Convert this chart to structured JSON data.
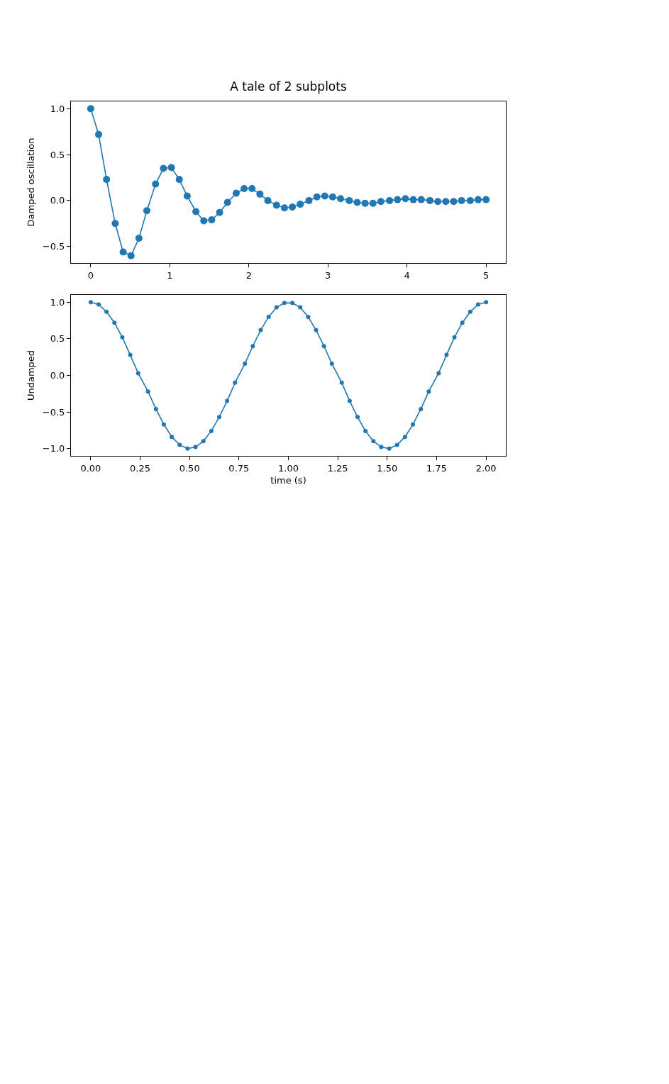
{
  "chart_data": [
    {
      "type": "line",
      "title": "A tale of 2 subplots",
      "ylabel": "Damped oscillation",
      "marker": "circle",
      "line_style": "solid",
      "grid": false,
      "legend": false,
      "x": [
        0,
        0.1,
        0.2,
        0.31,
        0.41,
        0.51,
        0.61,
        0.71,
        0.82,
        0.92,
        1.02,
        1.12,
        1.22,
        1.33,
        1.43,
        1.53,
        1.63,
        1.73,
        1.84,
        1.94,
        2.04,
        2.14,
        2.24,
        2.35,
        2.45,
        2.55,
        2.65,
        2.76,
        2.86,
        2.96,
        3.06,
        3.16,
        3.27,
        3.37,
        3.47,
        3.57,
        3.67,
        3.78,
        3.88,
        3.98,
        4.08,
        4.18,
        4.29,
        4.39,
        4.49,
        4.59,
        4.69,
        4.8,
        4.9,
        5.0
      ],
      "series": [
        {
          "color": "#1f77b4",
          "values": [
            1.0,
            0.72,
            0.23,
            -0.25,
            -0.56,
            -0.6,
            -0.41,
            -0.11,
            0.18,
            0.35,
            0.36,
            0.23,
            0.05,
            -0.12,
            -0.22,
            -0.21,
            -0.13,
            -0.02,
            0.08,
            0.13,
            0.13,
            0.07,
            0.0,
            -0.05,
            -0.08,
            -0.07,
            -0.04,
            0.0,
            0.04,
            0.05,
            0.04,
            0.02,
            0.0,
            -0.02,
            -0.03,
            -0.03,
            -0.01,
            0.0,
            0.01,
            0.02,
            0.01,
            0.01,
            0.0,
            -0.01,
            -0.01,
            -0.01,
            0.0,
            0.0,
            0.01,
            0.01
          ]
        }
      ],
      "xlim": [
        -0.25,
        5.25
      ],
      "xticks": [
        0,
        1,
        2,
        3,
        4,
        5
      ],
      "ylim": [
        -0.68,
        1.08
      ],
      "yticks": [
        {
          "value": -0.5,
          "label": "−0.5"
        },
        {
          "value": 0,
          "label": "0.0"
        },
        {
          "value": 0.5,
          "label": "0.5"
        },
        {
          "value": 1,
          "label": "1.0"
        }
      ]
    },
    {
      "type": "line",
      "xlabel": "time (s)",
      "ylabel": "Undamped",
      "marker": "circle",
      "line_style": "solid",
      "grid": false,
      "legend": false,
      "x": [
        0,
        0.04,
        0.08,
        0.12,
        0.16,
        0.2,
        0.24,
        0.29,
        0.33,
        0.37,
        0.41,
        0.45,
        0.49,
        0.53,
        0.57,
        0.61,
        0.65,
        0.69,
        0.73,
        0.78,
        0.82,
        0.86,
        0.9,
        0.94,
        0.98,
        1.02,
        1.06,
        1.1,
        1.14,
        1.18,
        1.22,
        1.27,
        1.31,
        1.35,
        1.39,
        1.43,
        1.47,
        1.51,
        1.55,
        1.59,
        1.63,
        1.67,
        1.71,
        1.76,
        1.8,
        1.84,
        1.88,
        1.92,
        1.96,
        2.0
      ],
      "series": [
        {
          "color": "#1f77b4",
          "values": [
            1.0,
            0.97,
            0.87,
            0.72,
            0.52,
            0.28,
            0.03,
            -0.22,
            -0.46,
            -0.67,
            -0.84,
            -0.95,
            -1.0,
            -0.98,
            -0.9,
            -0.76,
            -0.57,
            -0.35,
            -0.1,
            0.16,
            0.4,
            0.62,
            0.8,
            0.93,
            0.99,
            0.99,
            0.93,
            0.8,
            0.62,
            0.4,
            0.16,
            -0.1,
            -0.35,
            -0.57,
            -0.76,
            -0.9,
            -0.98,
            -1.0,
            -0.95,
            -0.84,
            -0.67,
            -0.46,
            -0.22,
            0.03,
            0.28,
            0.52,
            0.72,
            0.87,
            0.97,
            1.0
          ]
        }
      ],
      "xlim": [
        -0.1,
        2.1
      ],
      "xticks": [
        {
          "value": 0,
          "label": "0.00"
        },
        {
          "value": 0.25,
          "label": "0.25"
        },
        {
          "value": 0.5,
          "label": "0.50"
        },
        {
          "value": 0.75,
          "label": "0.75"
        },
        {
          "value": 1,
          "label": "1.00"
        },
        {
          "value": 1.25,
          "label": "1.25"
        },
        {
          "value": 1.5,
          "label": "1.50"
        },
        {
          "value": 1.75,
          "label": "1.75"
        },
        {
          "value": 2,
          "label": "2.00"
        }
      ],
      "ylim": [
        -1.1,
        1.1
      ],
      "yticks": [
        {
          "value": -1,
          "label": "−1.0"
        },
        {
          "value": -0.5,
          "label": "−0.5"
        },
        {
          "value": 0,
          "label": "0.0"
        },
        {
          "value": 0.5,
          "label": "0.5"
        },
        {
          "value": 1,
          "label": "1.0"
        }
      ]
    }
  ]
}
